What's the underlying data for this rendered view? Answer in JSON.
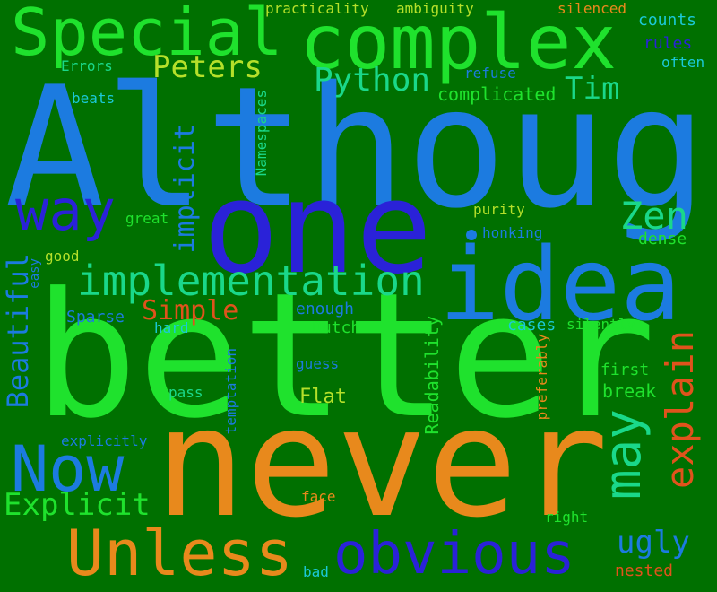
{
  "background": "#007000",
  "palette": {
    "bright_green": "#1fe22d",
    "blue": "#1c7be0",
    "deep_blue": "#2a22d8",
    "orange": "#e8891c",
    "red_orange": "#e0531c",
    "yellow_green": "#b5e02a",
    "teal": "#1ad88a",
    "cyan": "#1bc9d8"
  },
  "words": {
    "although": "Although",
    "better": "better",
    "never": "never",
    "one": "one",
    "idea": "idea",
    "complex": "complex",
    "special": "Special",
    "unless": "Unless",
    "obvious": "obvious",
    "now": "Now",
    "implementation": "implementation",
    "way": "way",
    "may": "may",
    "explain": "explain",
    "beautiful": "Beautiful",
    "zen": "Zen",
    "python": "Python",
    "peters": "Peters",
    "tim": "Tim",
    "explicit": "Explicit",
    "ugly": "ugly",
    "implicit": "implicit",
    "simple": "Simple",
    "readability": "Readability",
    "complicated": "complicated",
    "flat": "Flat",
    "break": "break",
    "namespaces": "Namespaces",
    "temptation": "temptation",
    "practicality": "practicality",
    "ambiguity": "ambiguity",
    "silenced": "silenced",
    "counts": "counts",
    "rules": "rules",
    "often": "often",
    "refuse": "refuse",
    "errors": "Errors",
    "beats": "beats",
    "purity": "purity",
    "great": "great",
    "honking": "honking",
    "dense": "dense",
    "good": "good",
    "enough": "enough",
    "sparse": "Sparse",
    "cases": "cases",
    "silently": "silently",
    "hard": "hard",
    "dutch": "Dutch",
    "guess": "guess",
    "first": "first",
    "pass": "pass",
    "preferably": "preferably",
    "explicitly": "explicitly",
    "face": "face",
    "right": "right",
    "bad": "bad",
    "nested": "nested",
    "easy": "easy"
  }
}
